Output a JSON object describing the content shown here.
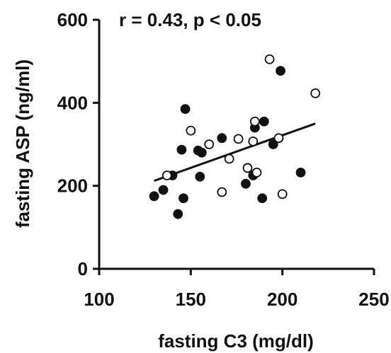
{
  "chart_data": {
    "type": "scatter",
    "title": "",
    "annotation": "r = 0.43, p < 0.05",
    "xlabel": "fasting C3 (mg/dl)",
    "ylabel": "fasting ASP (ng/ml)",
    "xlim": [
      100,
      250
    ],
    "ylim": [
      0,
      600
    ],
    "xticks": [
      "100",
      "150",
      "200",
      "250"
    ],
    "yticks": [
      "0",
      "200",
      "400",
      "600"
    ],
    "grid": false,
    "colors": {
      "axis": "#111111",
      "filled": "#111111",
      "open_fill": "#ffffff"
    },
    "series": [
      {
        "marker": "filled-circle",
        "points": [
          {
            "x": 130,
            "y": 175
          },
          {
            "x": 135,
            "y": 190
          },
          {
            "x": 140,
            "y": 225
          },
          {
            "x": 143,
            "y": 132
          },
          {
            "x": 145,
            "y": 287
          },
          {
            "x": 146,
            "y": 170
          },
          {
            "x": 147,
            "y": 385
          },
          {
            "x": 154,
            "y": 285
          },
          {
            "x": 155,
            "y": 222
          },
          {
            "x": 156,
            "y": 280
          },
          {
            "x": 167,
            "y": 315
          },
          {
            "x": 180,
            "y": 205
          },
          {
            "x": 184,
            "y": 225
          },
          {
            "x": 185,
            "y": 340
          },
          {
            "x": 189,
            "y": 170
          },
          {
            "x": 190,
            "y": 355
          },
          {
            "x": 195,
            "y": 300
          },
          {
            "x": 199,
            "y": 477
          },
          {
            "x": 210,
            "y": 232
          }
        ]
      },
      {
        "marker": "open-circle",
        "points": [
          {
            "x": 137,
            "y": 225
          },
          {
            "x": 150,
            "y": 333
          },
          {
            "x": 160,
            "y": 300
          },
          {
            "x": 167,
            "y": 185
          },
          {
            "x": 171,
            "y": 265
          },
          {
            "x": 176,
            "y": 313
          },
          {
            "x": 181,
            "y": 243
          },
          {
            "x": 184,
            "y": 307
          },
          {
            "x": 185,
            "y": 355
          },
          {
            "x": 186,
            "y": 232
          },
          {
            "x": 193,
            "y": 505
          },
          {
            "x": 198,
            "y": 315
          },
          {
            "x": 200,
            "y": 180
          },
          {
            "x": 218,
            "y": 423
          }
        ]
      }
    ],
    "trendline": {
      "x": [
        130,
        218
      ],
      "y": [
        212,
        350
      ]
    }
  }
}
